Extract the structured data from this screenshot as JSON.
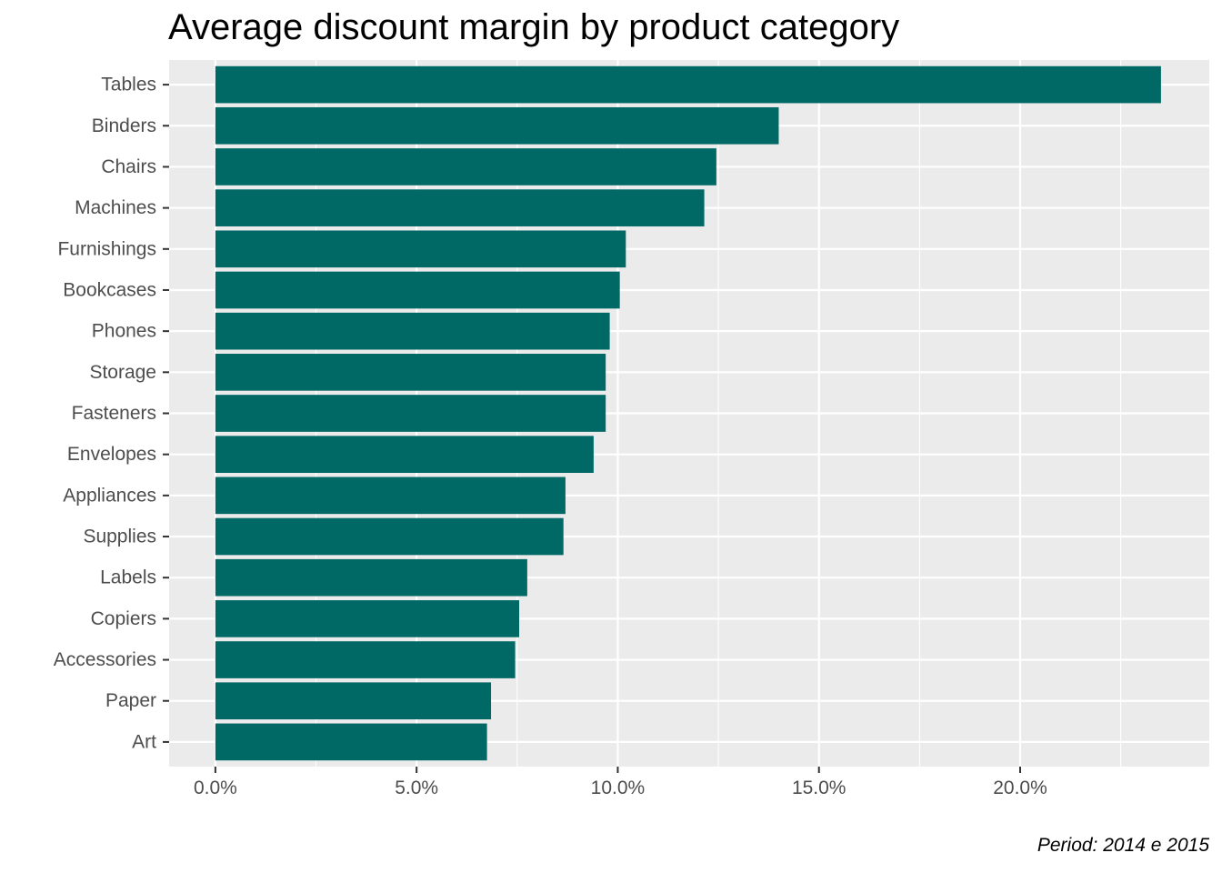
{
  "chart_data": {
    "type": "bar",
    "orientation": "horizontal",
    "title": "Average discount margin by product category",
    "caption": "Period: 2014 e 2015",
    "xlabel": "",
    "ylabel": "",
    "categories": [
      "Tables",
      "Binders",
      "Chairs",
      "Machines",
      "Furnishings",
      "Bookcases",
      "Phones",
      "Storage",
      "Fasteners",
      "Envelopes",
      "Appliances",
      "Supplies",
      "Labels",
      "Copiers",
      "Accessories",
      "Paper",
      "Art"
    ],
    "values": [
      0.235,
      0.14,
      0.1245,
      0.1215,
      0.102,
      0.1005,
      0.098,
      0.097,
      0.097,
      0.094,
      0.087,
      0.0865,
      0.0775,
      0.0755,
      0.0745,
      0.0685,
      0.0675
    ],
    "xlim": [
      -0.0115,
      0.247
    ],
    "xticks": [
      0,
      0.05,
      0.1,
      0.15,
      0.2
    ],
    "xtick_labels": [
      "0.0%",
      "5.0%",
      "10.0%",
      "15.0%",
      "20.0%"
    ],
    "grid": true,
    "legend": "none",
    "colors": {
      "bar": "#006966",
      "panel": "#ebebeb",
      "grid": "#ffffff",
      "axis_text": "#4d4d4d",
      "tick": "#333333"
    }
  }
}
